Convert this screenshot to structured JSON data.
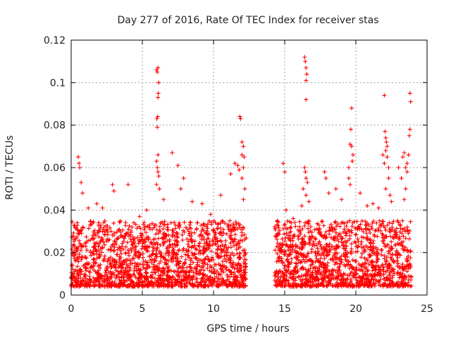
{
  "chart_data": {
    "type": "scatter",
    "title": "Day 277 of 2016, Rate Of TEC Index for receiver stas",
    "xlabel": "GPS time / hours",
    "ylabel": "ROTI / TECUs",
    "xlim": [
      0,
      25
    ],
    "ylim": [
      0,
      0.12
    ],
    "xticks": [
      0,
      5,
      10,
      15,
      20,
      25
    ],
    "xtick_labels": [
      "0",
      "5",
      "10",
      "15",
      "20",
      "25"
    ],
    "yticks": [
      0,
      0.02,
      0.04,
      0.06,
      0.08,
      0.1,
      0.12
    ],
    "ytick_labels": [
      "0",
      "0.02",
      "0.04",
      "0.06",
      "0.08",
      "0.1",
      "0.12"
    ],
    "grid": true,
    "marker": "+",
    "color": "#ff0000",
    "data_gap_hours": [
      12.3,
      14.3
    ],
    "series": [
      {
        "name": "ROTI",
        "points": [
          [
            0.5,
            0.065
          ],
          [
            0.55,
            0.062
          ],
          [
            0.6,
            0.06
          ],
          [
            0.7,
            0.053
          ],
          [
            0.8,
            0.048
          ],
          [
            1.2,
            0.041
          ],
          [
            1.8,
            0.043
          ],
          [
            2.2,
            0.041
          ],
          [
            2.9,
            0.052
          ],
          [
            3.0,
            0.049
          ],
          [
            4.0,
            0.052
          ],
          [
            4.4,
            0.034
          ],
          [
            4.8,
            0.037
          ],
          [
            5.3,
            0.04
          ],
          [
            6.0,
            0.106
          ],
          [
            6.05,
            0.105
          ],
          [
            6.1,
            0.107
          ],
          [
            6.15,
            0.1
          ],
          [
            6.12,
            0.095
          ],
          [
            6.1,
            0.093
          ],
          [
            6.08,
            0.084
          ],
          [
            6.02,
            0.083
          ],
          [
            6.05,
            0.079
          ],
          [
            6.1,
            0.066
          ],
          [
            6.0,
            0.063
          ],
          [
            6.05,
            0.06
          ],
          [
            6.1,
            0.058
          ],
          [
            6.15,
            0.056
          ],
          [
            6.0,
            0.052
          ],
          [
            6.2,
            0.05
          ],
          [
            6.5,
            0.045
          ],
          [
            7.1,
            0.067
          ],
          [
            7.5,
            0.061
          ],
          [
            7.9,
            0.055
          ],
          [
            7.7,
            0.05
          ],
          [
            8.5,
            0.044
          ],
          [
            9.2,
            0.043
          ],
          [
            9.8,
            0.038
          ],
          [
            10.5,
            0.047
          ],
          [
            11.2,
            0.057
          ],
          [
            11.5,
            0.062
          ],
          [
            11.7,
            0.061
          ],
          [
            11.8,
            0.059
          ],
          [
            11.85,
            0.084
          ],
          [
            11.9,
            0.083
          ],
          [
            12.0,
            0.072
          ],
          [
            12.1,
            0.07
          ],
          [
            12.0,
            0.066
          ],
          [
            12.15,
            0.065
          ],
          [
            12.1,
            0.06
          ],
          [
            12.0,
            0.055
          ],
          [
            12.2,
            0.05
          ],
          [
            12.1,
            0.045
          ],
          [
            14.9,
            0.062
          ],
          [
            15.0,
            0.058
          ],
          [
            15.1,
            0.04
          ],
          [
            15.6,
            0.036
          ],
          [
            16.4,
            0.112
          ],
          [
            16.45,
            0.11
          ],
          [
            16.5,
            0.107
          ],
          [
            16.55,
            0.104
          ],
          [
            16.5,
            0.101
          ],
          [
            16.5,
            0.092
          ],
          [
            16.4,
            0.06
          ],
          [
            16.45,
            0.058
          ],
          [
            16.5,
            0.055
          ],
          [
            16.6,
            0.053
          ],
          [
            16.3,
            0.05
          ],
          [
            16.5,
            0.047
          ],
          [
            16.7,
            0.044
          ],
          [
            16.2,
            0.042
          ],
          [
            17.8,
            0.058
          ],
          [
            17.9,
            0.055
          ],
          [
            18.1,
            0.048
          ],
          [
            18.6,
            0.05
          ],
          [
            19.0,
            0.045
          ],
          [
            19.5,
            0.06
          ],
          [
            19.7,
            0.088
          ],
          [
            19.65,
            0.078
          ],
          [
            19.6,
            0.071
          ],
          [
            19.7,
            0.07
          ],
          [
            19.8,
            0.066
          ],
          [
            19.75,
            0.063
          ],
          [
            19.5,
            0.055
          ],
          [
            19.6,
            0.052
          ],
          [
            20.3,
            0.048
          ],
          [
            20.8,
            0.042
          ],
          [
            21.2,
            0.043
          ],
          [
            21.6,
            0.041
          ],
          [
            21.9,
            0.066
          ],
          [
            22.0,
            0.062
          ],
          [
            22.05,
            0.077
          ],
          [
            22.1,
            0.074
          ],
          [
            22.15,
            0.072
          ],
          [
            22.2,
            0.07
          ],
          [
            22.1,
            0.068
          ],
          [
            22.0,
            0.094
          ],
          [
            22.2,
            0.065
          ],
          [
            22.3,
            0.06
          ],
          [
            22.3,
            0.055
          ],
          [
            22.1,
            0.05
          ],
          [
            22.4,
            0.047
          ],
          [
            22.5,
            0.044
          ],
          [
            23.0,
            0.06
          ],
          [
            23.2,
            0.055
          ],
          [
            23.3,
            0.065
          ],
          [
            23.4,
            0.067
          ],
          [
            23.5,
            0.06
          ],
          [
            23.6,
            0.062
          ],
          [
            23.8,
            0.095
          ],
          [
            23.85,
            0.091
          ],
          [
            23.8,
            0.078
          ],
          [
            23.75,
            0.075
          ],
          [
            23.7,
            0.066
          ],
          [
            23.6,
            0.058
          ],
          [
            23.5,
            0.05
          ],
          [
            23.4,
            0.045
          ]
        ],
        "dense_bands": [
          {
            "x_range": [
              0.0,
              12.3
            ],
            "typical_range": [
              0.004,
              0.035
            ]
          },
          {
            "x_range": [
              14.3,
              23.9
            ],
            "typical_range": [
              0.004,
              0.035
            ]
          }
        ]
      }
    ]
  }
}
